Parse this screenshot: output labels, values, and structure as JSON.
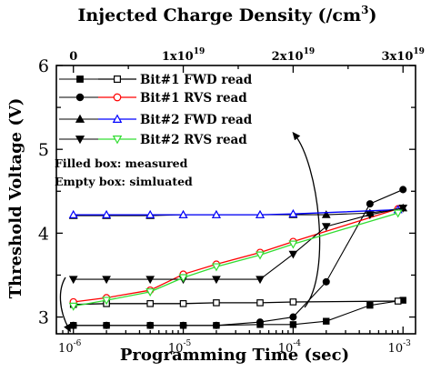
{
  "chart_data": {
    "type": "scatter",
    "title_top": "Injected Charge Density (/cm",
    "title_top_sup": "3",
    "title_top_close": ")",
    "xlabel": "Programming Time (sec)",
    "ylabel": "Threshold Voltage (V)",
    "x_scale": "log",
    "xlim": [
      7e-07,
      0.0013
    ],
    "ylim": [
      2.8,
      6.0
    ],
    "y_ticks": [
      "3",
      "4",
      "5",
      "6"
    ],
    "x_ticks": [
      {
        "base": "10",
        "exp": "-6",
        "value": 1e-06
      },
      {
        "base": "10",
        "exp": "-5",
        "value": 1e-05
      },
      {
        "base": "10",
        "exp": "-4",
        "value": 0.0001
      },
      {
        "base": "10",
        "exp": "-3",
        "value": 0.001
      }
    ],
    "top_ticks": [
      {
        "base": "0",
        "exp": "",
        "value": 1e-06
      },
      {
        "base": "1x10",
        "exp": "19",
        "value": 1e-05
      },
      {
        "base": "2x10",
        "exp": "19",
        "value": 0.0001
      },
      {
        "base": "3x10",
        "exp": "19",
        "value": 0.001
      }
    ],
    "annotations": [
      "Filled box: measured",
      "Empty box: simluated"
    ],
    "series": [
      {
        "name": "Bit#1 FWD read",
        "kind": "measured",
        "marker": "square",
        "color": "#000000",
        "x": [
          1e-06,
          2e-06,
          5e-06,
          1e-05,
          2e-05,
          5e-05,
          0.0001,
          0.0002,
          0.0005,
          0.001
        ],
        "y": [
          2.9,
          2.9,
          2.9,
          2.9,
          2.9,
          2.91,
          2.91,
          2.95,
          3.14,
          3.2
        ]
      },
      {
        "name": "Bit#1 FWD read",
        "kind": "simulated",
        "marker": "square-open",
        "color": "#000000",
        "x": [
          1e-06,
          2e-06,
          5e-06,
          1e-05,
          2e-05,
          5e-05,
          0.0001,
          0.0009
        ],
        "y": [
          3.15,
          3.16,
          3.16,
          3.16,
          3.17,
          3.17,
          3.18,
          3.19
        ]
      },
      {
        "name": "Bit#1 RVS read",
        "kind": "measured",
        "marker": "circle",
        "color": "#000000",
        "x": [
          1e-06,
          2e-06,
          5e-06,
          1e-05,
          2e-05,
          5e-05,
          0.0001,
          0.0002,
          0.0005,
          0.001
        ],
        "y": [
          2.9,
          2.9,
          2.9,
          2.9,
          2.9,
          2.94,
          3.0,
          3.42,
          4.35,
          4.52
        ]
      },
      {
        "name": "Bit#1 RVS read",
        "kind": "simulated",
        "marker": "circle-open",
        "color": "#ff0000",
        "x": [
          1e-06,
          2e-06,
          5e-06,
          1e-05,
          2e-05,
          5e-05,
          0.0001,
          0.0009
        ],
        "y": [
          3.18,
          3.23,
          3.32,
          3.51,
          3.63,
          3.77,
          3.9,
          4.29
        ]
      },
      {
        "name": "Bit#2 FWD read",
        "kind": "measured",
        "marker": "triangle-up",
        "color": "#000000",
        "x": [
          1e-06,
          2e-06,
          5e-06,
          1e-05,
          2e-05,
          5e-05,
          0.0001,
          0.0002,
          0.0005,
          0.001
        ],
        "y": [
          4.21,
          4.21,
          4.21,
          4.22,
          4.22,
          4.22,
          4.22,
          4.22,
          4.24,
          4.3
        ]
      },
      {
        "name": "Bit#2 FWD read",
        "kind": "simulated",
        "marker": "triangle-up-open",
        "color": "#0000ff",
        "x": [
          1e-06,
          2e-06,
          5e-06,
          1e-05,
          2e-05,
          5e-05,
          0.0001,
          0.0009
        ],
        "y": [
          4.22,
          4.22,
          4.22,
          4.22,
          4.22,
          4.22,
          4.23,
          4.28
        ]
      },
      {
        "name": "Bit#2 RVS read",
        "kind": "measured",
        "marker": "triangle-down",
        "color": "#000000",
        "x": [
          1e-06,
          2e-06,
          5e-06,
          1e-05,
          2e-05,
          5e-05,
          0.0001,
          0.0002,
          0.0005,
          0.001
        ],
        "y": [
          3.45,
          3.45,
          3.45,
          3.45,
          3.45,
          3.45,
          3.75,
          4.08,
          4.22,
          4.3
        ]
      },
      {
        "name": "Bit#2 RVS read",
        "kind": "simulated",
        "marker": "triangle-down-open",
        "color": "#33dd33",
        "x": [
          1e-06,
          2e-06,
          5e-06,
          1e-05,
          2e-05,
          5e-05,
          0.0001,
          0.0009
        ],
        "y": [
          3.13,
          3.2,
          3.3,
          3.47,
          3.6,
          3.74,
          3.87,
          4.24
        ]
      }
    ],
    "legend": [
      {
        "label": "Bit#1 FWD read",
        "marker_measured": "square",
        "marker_simulated": "square-open",
        "color_simulated": "#000000"
      },
      {
        "label": "Bit#1 RVS read",
        "marker_measured": "circle",
        "marker_simulated": "circle-open",
        "color_simulated": "#ff0000"
      },
      {
        "label": "Bit#2 FWD read",
        "marker_measured": "triangle-up",
        "marker_simulated": "triangle-up-open",
        "color_simulated": "#0000ff"
      },
      {
        "label": "Bit#2 RVS read",
        "marker_measured": "triangle-down",
        "marker_simulated": "triangle-down-open",
        "color_simulated": "#33dd33"
      }
    ],
    "legend_placement": "top-left",
    "grid": false
  }
}
